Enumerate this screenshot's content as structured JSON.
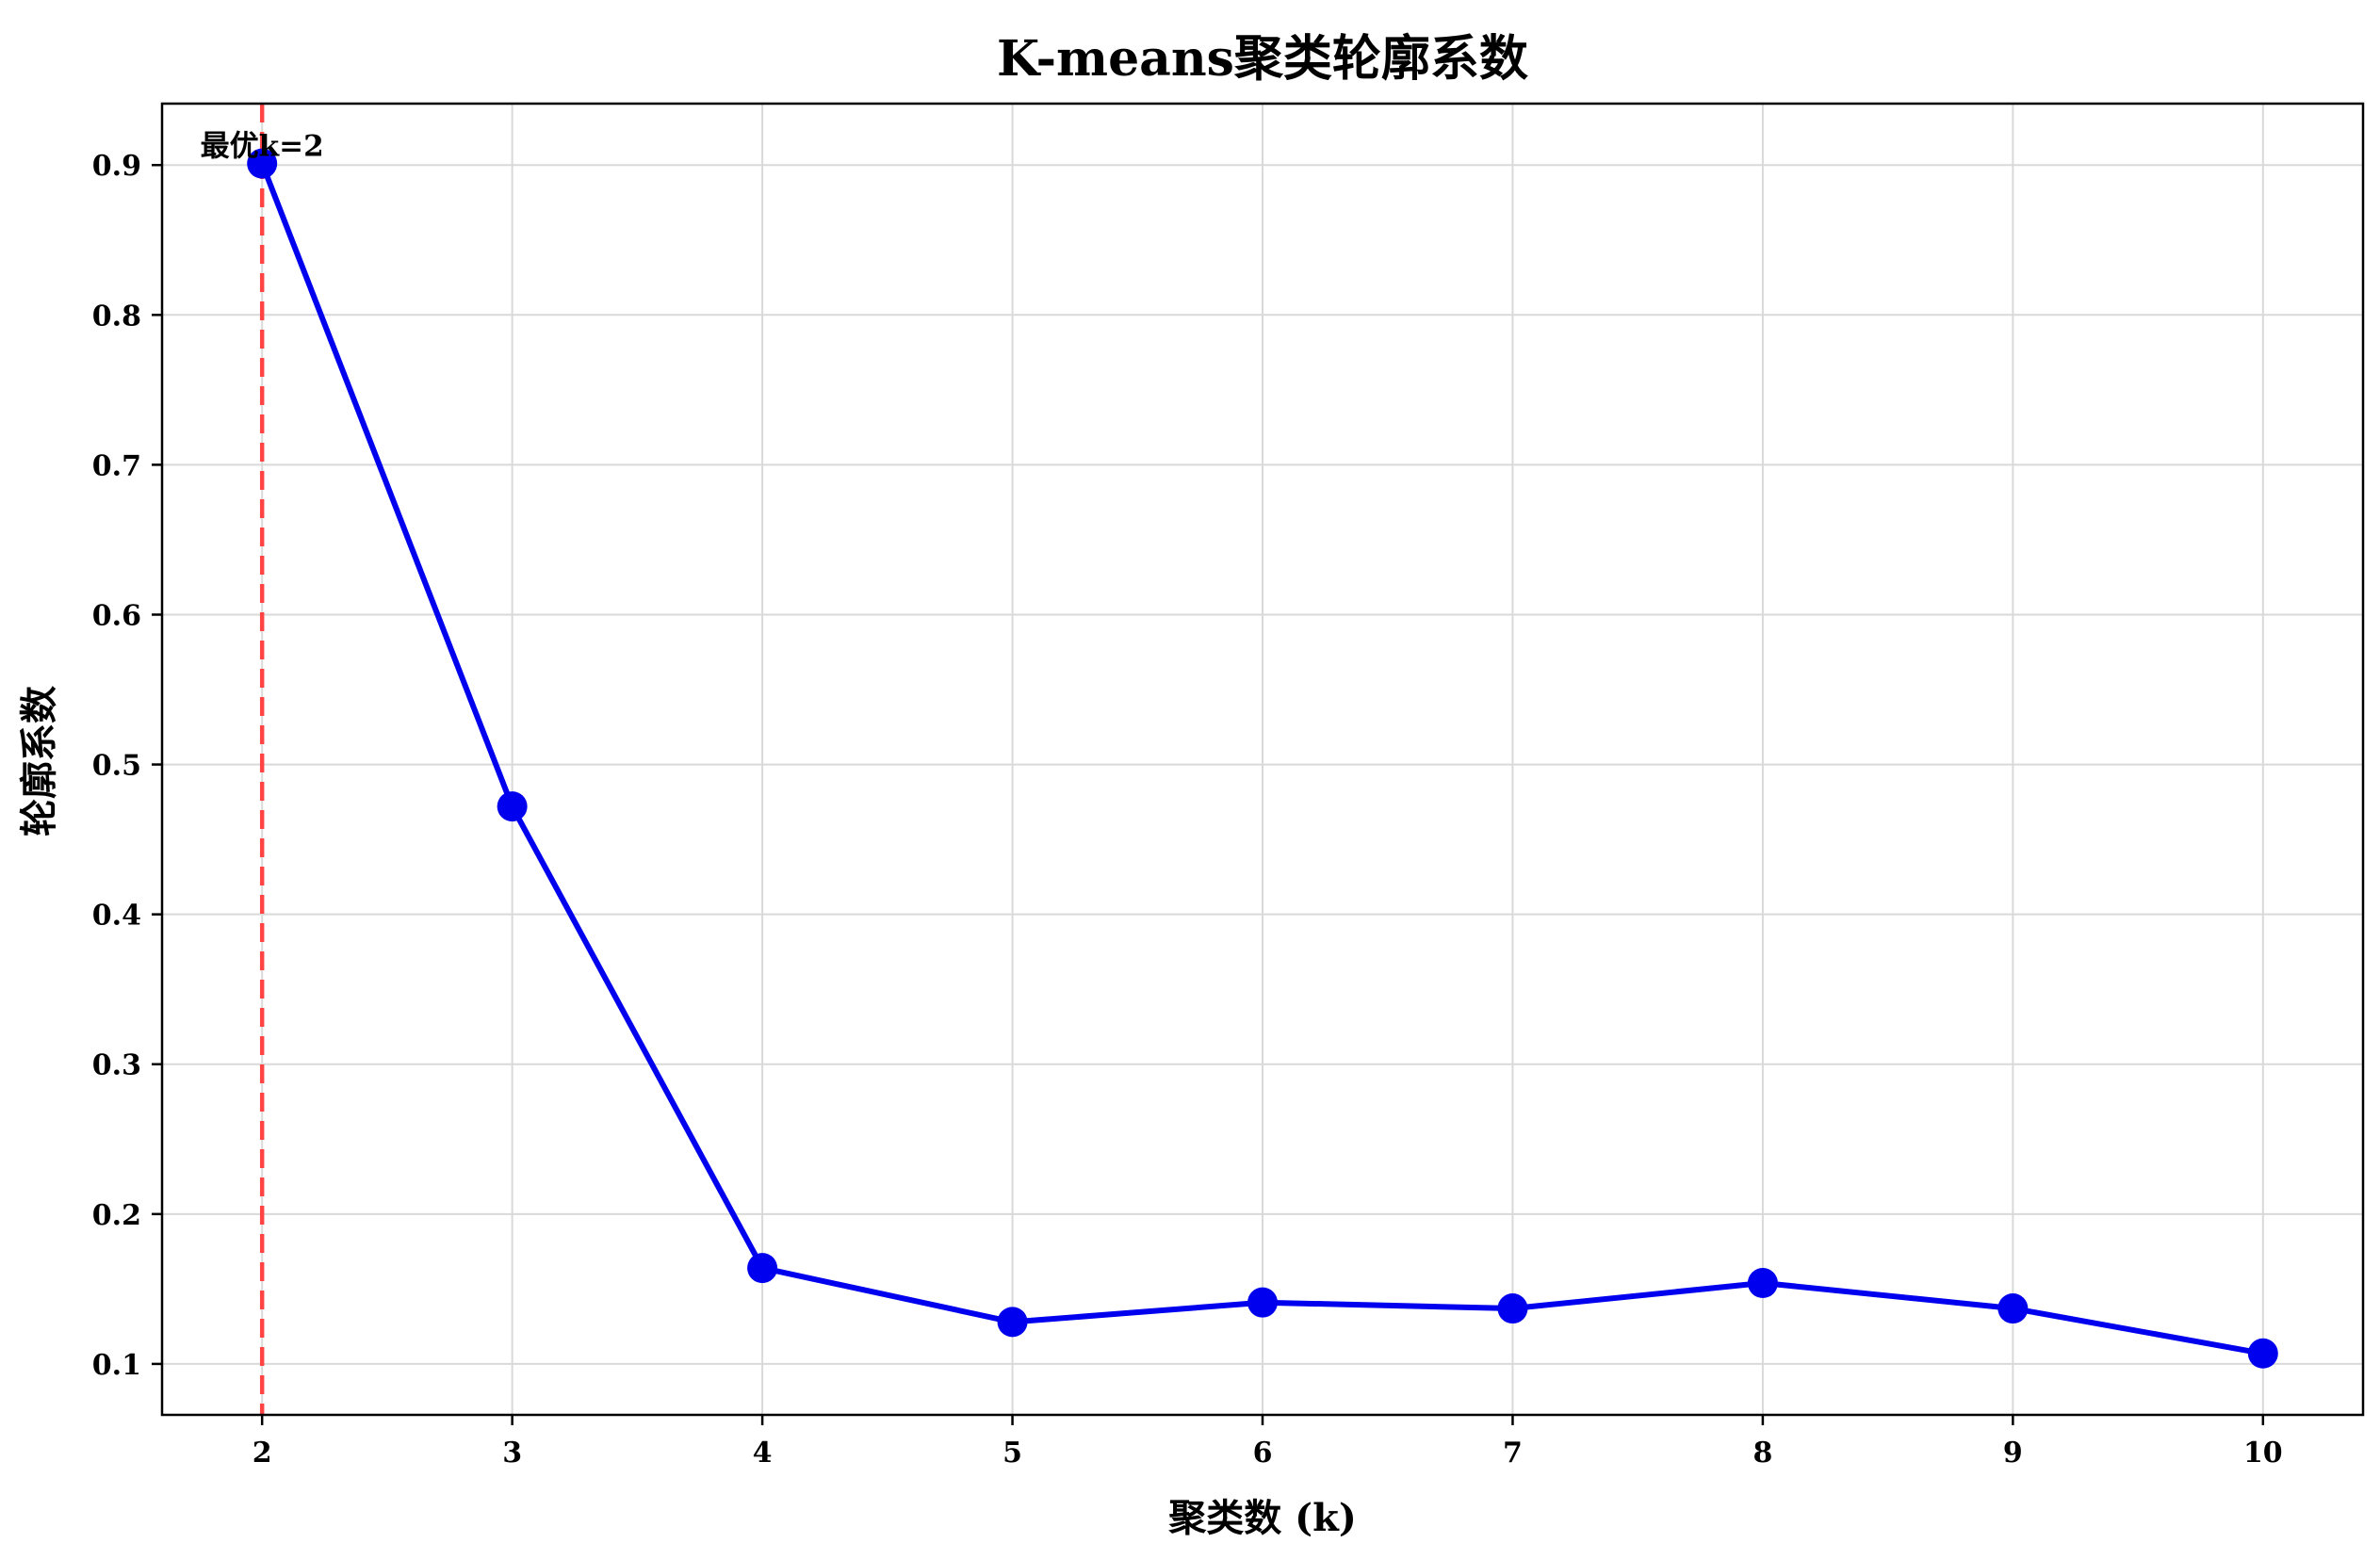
{
  "chart_data": {
    "type": "line",
    "title": "K-means聚类轮廓系数",
    "xlabel": "聚类数 (k)",
    "ylabel": "轮廓系数",
    "x": [
      2,
      3,
      4,
      5,
      6,
      7,
      8,
      9,
      10
    ],
    "series": [
      {
        "values": [
          0.901,
          0.472,
          0.164,
          0.128,
          0.141,
          0.137,
          0.154,
          0.137,
          0.107
        ],
        "color": "#0000ee",
        "marker": "circle"
      }
    ],
    "xlim": [
      1.6,
      10.4
    ],
    "ylim": [
      0.066,
      0.941
    ],
    "xticks": [
      "2",
      "3",
      "4",
      "5",
      "6",
      "7",
      "8",
      "9",
      "10"
    ],
    "yticks": [
      "0.1",
      "0.2",
      "0.3",
      "0.4",
      "0.5",
      "0.6",
      "0.7",
      "0.8",
      "0.9"
    ],
    "grid": true,
    "reference_line": {
      "x": 2,
      "color": "#ff4444",
      "style": "dashed"
    },
    "annotation": {
      "text": "最优k=2",
      "x": 2,
      "y": 0.901
    }
  }
}
